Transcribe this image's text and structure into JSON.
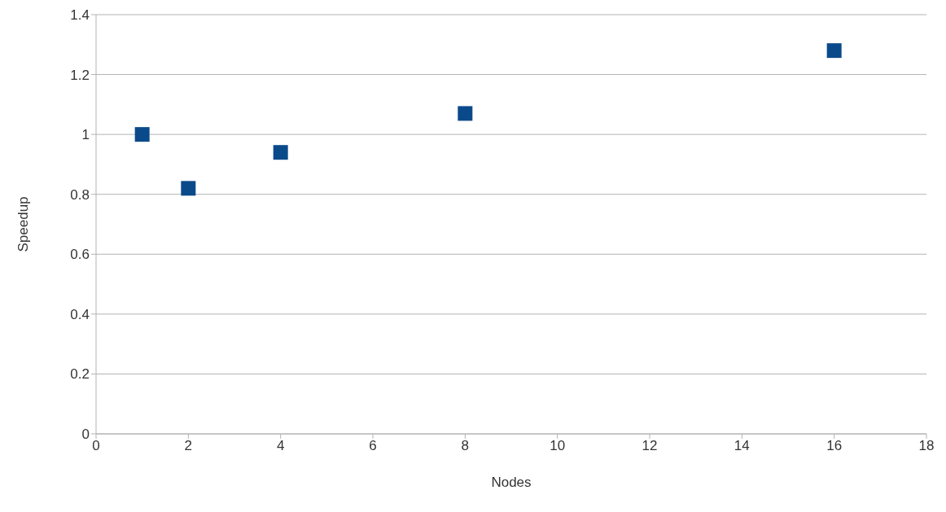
{
  "chart_data": {
    "type": "scatter",
    "xlabel": "Nodes",
    "ylabel": "Speedup",
    "x": [
      1,
      2,
      4,
      8,
      16
    ],
    "series": [
      {
        "color": "#0b4a8a",
        "values": [
          1.0,
          0.82,
          0.94,
          1.07,
          1.28
        ]
      }
    ],
    "xlim": [
      0,
      18
    ],
    "xticks": [
      0,
      2,
      4,
      6,
      8,
      10,
      12,
      14,
      16,
      18
    ],
    "ylim": [
      0,
      1.4
    ],
    "yticks": [
      0,
      0.2,
      0.4,
      0.6,
      0.8,
      1,
      1.2,
      1.4
    ],
    "grid": "y",
    "marker": "square",
    "legend": false
  }
}
